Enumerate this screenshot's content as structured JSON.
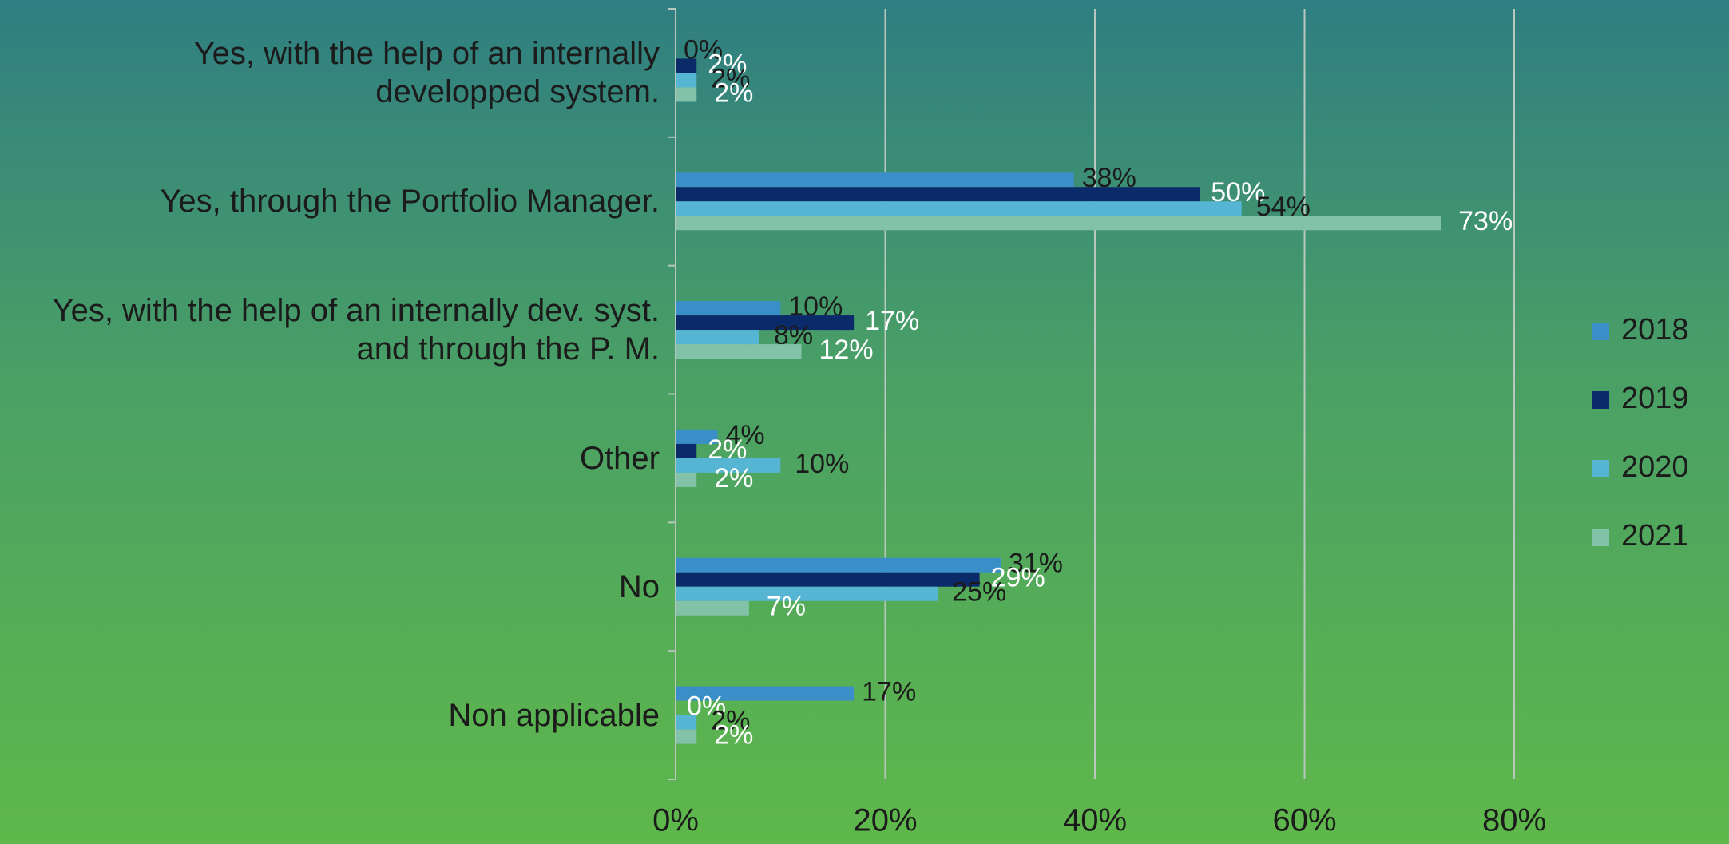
{
  "chart_data": {
    "type": "hbar",
    "categories": [
      "Yes, with the help of an internally developped system.",
      "Yes, through the Portfolio Manager.",
      "Yes, with the help of an internally dev. syst. and through the P. M.",
      "Other",
      "No",
      "Non applicable"
    ],
    "series": [
      {
        "name": "2018",
        "color": "#3b8fc9",
        "values": [
          0,
          38,
          10,
          4,
          31,
          17
        ]
      },
      {
        "name": "2019",
        "color": "#0b2a6a",
        "values": [
          2,
          50,
          17,
          2,
          29,
          0
        ]
      },
      {
        "name": "2020",
        "color": "#55b5d2",
        "values": [
          2,
          54,
          8,
          10,
          25,
          2
        ]
      },
      {
        "name": "2021",
        "color": "#82c2a9",
        "values": [
          2,
          73,
          12,
          2,
          7,
          2
        ]
      }
    ],
    "value_labels": [
      [
        "0%",
        "38%",
        "10%",
        "4%",
        "31%",
        "17%"
      ],
      [
        "2%",
        "50%",
        "17%",
        "2%",
        "29%",
        "0%"
      ],
      [
        "2%",
        "54%",
        "8%",
        "10%",
        "25%",
        "2%"
      ],
      [
        "2%",
        "73%",
        "12%",
        "2%",
        "7%",
        "2%"
      ]
    ],
    "xlim": [
      0,
      80
    ],
    "xticks": [
      {
        "value": 0,
        "label": "0%"
      },
      {
        "value": 20,
        "label": "20%"
      },
      {
        "value": 40,
        "label": "40%"
      },
      {
        "value": 60,
        "label": "60%"
      },
      {
        "value": 80,
        "label": "80%"
      }
    ],
    "grid": true,
    "legend": "right"
  }
}
